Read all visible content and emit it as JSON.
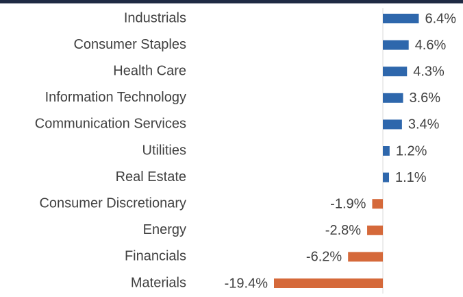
{
  "chart_data": {
    "type": "hbar",
    "categories": [
      "Industrials",
      "Consumer Staples",
      "Health Care",
      "Information Technology",
      "Communication Services",
      "Utilities",
      "Real Estate",
      "Consumer Discretionary",
      "Energy",
      "Financials",
      "Materials"
    ],
    "values": [
      6.4,
      4.6,
      4.3,
      3.6,
      3.4,
      1.2,
      1.1,
      -1.9,
      -2.8,
      -6.2,
      -19.4
    ],
    "value_labels": [
      "6.4%",
      "4.6%",
      "4.3%",
      "3.6%",
      "3.4%",
      "1.2%",
      "1.1%",
      "-1.9%",
      "-2.8%",
      "-6.2%",
      "-19.4%"
    ],
    "positive_color": "#2e67ac",
    "negative_color": "#d5693a"
  }
}
